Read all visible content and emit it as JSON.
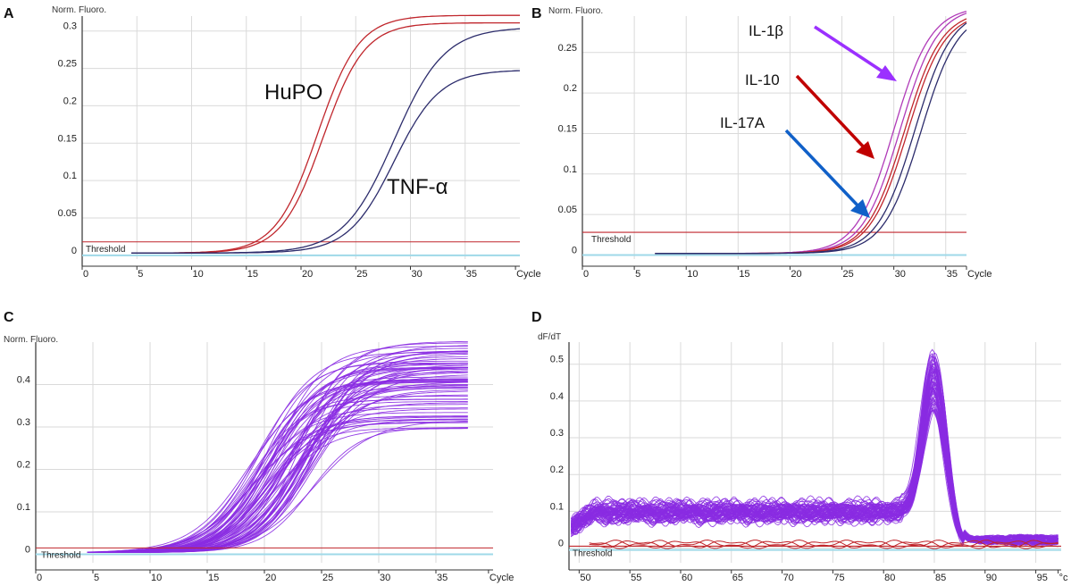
{
  "colors": {
    "grid": "#dadada",
    "axis": "#333333",
    "threshold": "#c0262c",
    "baseline": "#9fd9e8",
    "red_curve": "#c0262c",
    "navy_curve": "#2c2c6c",
    "purple_curve": "#8a2be2",
    "magenta_curve": "#b03ab8",
    "arrow_purple": "#9b30ff",
    "arrow_red": "#c00000",
    "arrow_blue": "#1060c8"
  },
  "chart_data": [
    {
      "panel": "A",
      "type": "line",
      "ylabel": "Norm. Fluoro.",
      "xlabel": "Cycle",
      "xlim": [
        0,
        40
      ],
      "ylim": [
        -0.005,
        0.32
      ],
      "x_ticks": [
        "0",
        "5",
        "10",
        "15",
        "20",
        "25",
        "30",
        "35",
        "Cycle"
      ],
      "y_ticks": [
        "0",
        "0.05",
        "0.1",
        "0.15",
        "0.2",
        "0.25",
        "0.3"
      ],
      "y_tick_values": [
        0,
        0.05,
        0.1,
        0.15,
        0.2,
        0.25,
        0.3
      ],
      "threshold_label": "Threshold",
      "threshold": 0.018,
      "annotations": [
        {
          "text": "HuPO",
          "target": "red curves"
        },
        {
          "text": "TNF-α",
          "target": "navy curves"
        }
      ],
      "series": [
        {
          "name": "HuPO replicate 1",
          "color_key": "red_curve",
          "midpoint": 21.5,
          "slope": 1.9,
          "plateau": 0.318
        },
        {
          "name": "HuPO replicate 2",
          "color_key": "red_curve",
          "midpoint": 22.0,
          "slope": 1.9,
          "plateau": 0.308
        },
        {
          "name": "TNF-α replicate 1",
          "color_key": "navy_curve",
          "midpoint": 28.5,
          "slope": 2.3,
          "plateau": 0.302
        },
        {
          "name": "TNF-α replicate 2",
          "color_key": "navy_curve",
          "midpoint": 28.5,
          "slope": 2.1,
          "plateau": 0.245
        }
      ]
    },
    {
      "panel": "B",
      "type": "line",
      "ylabel": "Norm. Fluoro.",
      "xlabel": "Cycle",
      "xlim": [
        0,
        37
      ],
      "ylim": [
        -0.005,
        0.295
      ],
      "x_ticks": [
        "0",
        "5",
        "10",
        "15",
        "20",
        "25",
        "30",
        "35",
        "Cycle"
      ],
      "y_ticks": [
        "0",
        "0.05",
        "0.1",
        "0.15",
        "0.2",
        "0.25"
      ],
      "y_tick_values": [
        0,
        0.05,
        0.1,
        0.15,
        0.2,
        0.25
      ],
      "threshold_label": "Threshold",
      "threshold": 0.028,
      "annotations": [
        {
          "text": "IL-1β",
          "target": "purple curves",
          "arrow_color_key": "arrow_purple"
        },
        {
          "text": "IL-10",
          "target": "red curves",
          "arrow_color_key": "arrow_red"
        },
        {
          "text": "IL-17A",
          "target": "navy curves",
          "arrow_color_key": "arrow_blue"
        }
      ],
      "series": [
        {
          "name": "IL-1β replicate 1",
          "color_key": "magenta_curve",
          "midpoint": 30.0,
          "slope": 1.8,
          "plateau": 0.305
        },
        {
          "name": "IL-1β replicate 2",
          "color_key": "magenta_curve",
          "midpoint": 30.6,
          "slope": 1.8,
          "plateau": 0.305
        },
        {
          "name": "IL-10 replicate 1",
          "color_key": "red_curve",
          "midpoint": 31.0,
          "slope": 1.8,
          "plateau": 0.3
        },
        {
          "name": "IL-10 replicate 2",
          "color_key": "red_curve",
          "midpoint": 31.3,
          "slope": 1.8,
          "plateau": 0.298
        },
        {
          "name": "IL-17A replicate 1",
          "color_key": "navy_curve",
          "midpoint": 32.0,
          "slope": 1.8,
          "plateau": 0.302
        },
        {
          "name": "IL-17A replicate 2",
          "color_key": "navy_curve",
          "midpoint": 32.6,
          "slope": 1.8,
          "plateau": 0.3
        }
      ]
    },
    {
      "panel": "C",
      "type": "line",
      "ylabel": "Norm. Fluoro.",
      "xlabel": "Cycle",
      "xlim": [
        0,
        40
      ],
      "ylim": [
        -0.02,
        0.5
      ],
      "x_ticks": [
        "0",
        "5",
        "10",
        "15",
        "20",
        "25",
        "30",
        "35",
        "Cycle"
      ],
      "y_ticks": [
        "0",
        "0.1",
        "0.2",
        "0.3",
        "0.4"
      ],
      "y_tick_values": [
        0,
        0.1,
        0.2,
        0.3,
        0.4
      ],
      "threshold_label": "Threshold",
      "threshold": 0.015,
      "curve_family": {
        "count": 70,
        "color_key": "purple_curve",
        "midpoint_range": [
          18.5,
          24.5
        ],
        "plateau_range": [
          0.29,
          0.5
        ],
        "slope": 2.3
      }
    },
    {
      "panel": "D",
      "type": "line",
      "ylabel": "dF/dT",
      "xlabel": "°c",
      "xlim": [
        49,
        97.5
      ],
      "ylim": [
        -0.04,
        0.56
      ],
      "x_ticks": [
        "50",
        "55",
        "60",
        "65",
        "70",
        "75",
        "80",
        "85",
        "90",
        "95",
        "°c"
      ],
      "y_ticks": [
        "0",
        "0.1",
        "0.2",
        "0.3",
        "0.4",
        "0.5"
      ],
      "y_tick_values": [
        0,
        0.1,
        0.2,
        0.3,
        0.4,
        0.5
      ],
      "threshold_label": "Threshold",
      "threshold": 0.005,
      "melt_family": {
        "count": 70,
        "color_key": "purple_curve",
        "peak_temperature": 85.0,
        "peak_height_range": [
          0.38,
          0.54
        ],
        "shoulder_level": 0.1
      },
      "control_traces": {
        "count": 3,
        "color_key": "red_curve",
        "level": 0.01
      }
    }
  ]
}
